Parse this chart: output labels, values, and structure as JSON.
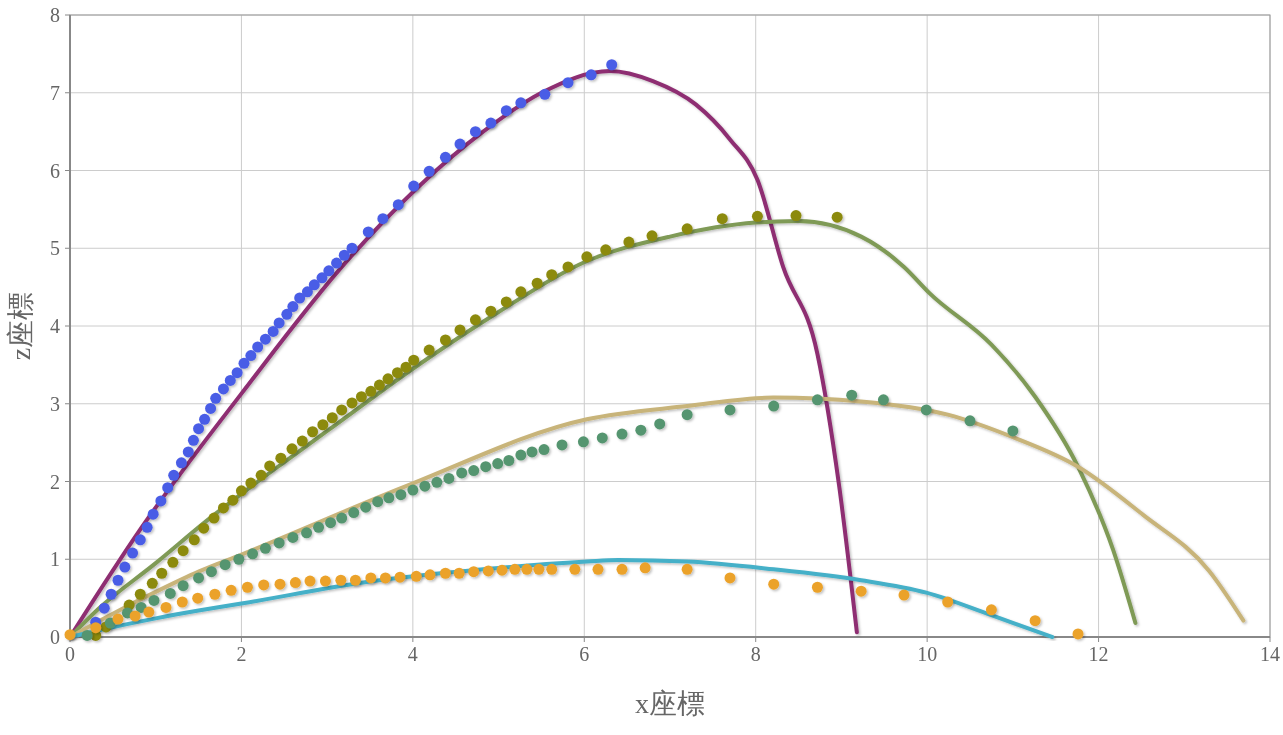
{
  "chart_data": {
    "type": "scatter",
    "xlabel": "x座標",
    "ylabel": "z座標",
    "xlim": [
      0,
      14
    ],
    "ylim": [
      0,
      8
    ],
    "xticks": [
      0,
      2,
      4,
      6,
      8,
      10,
      12,
      14
    ],
    "yticks": [
      0,
      1,
      2,
      3,
      4,
      5,
      6,
      7,
      8
    ],
    "grid": true,
    "marker": "circle",
    "series": [
      {
        "type": "line",
        "marker": "none",
        "color": "#8e2e72",
        "x": [
          0,
          0.83,
          2.0,
          3.25,
          4.82,
          5.5,
          6.3,
          6.8,
          7.3,
          7.7,
          8.02,
          8.32,
          8.72,
          8.97,
          9.18
        ],
        "values": [
          0,
          1.4,
          3.13,
          4.86,
          6.5,
          7.0,
          7.28,
          7.15,
          6.85,
          6.4,
          5.88,
          4.76,
          3.64,
          1.97,
          0.06
        ]
      },
      {
        "type": "line",
        "marker": "none",
        "color": "#7f9a57",
        "x": [
          0,
          0.33,
          1.0,
          1.6,
          2.5,
          3,
          4,
          5,
          6,
          7,
          8,
          8.5,
          9.23,
          9.73,
          10.03,
          10.75,
          11.26,
          11.76,
          12.17,
          12.43
        ],
        "values": [
          0,
          0.36,
          0.95,
          1.5,
          2.25,
          2.65,
          3.45,
          4.18,
          4.82,
          5.15,
          5.33,
          5.35,
          5.15,
          4.76,
          4.42,
          3.76,
          3.09,
          2.19,
          1.12,
          0.18
        ]
      },
      {
        "type": "line",
        "marker": "none",
        "color": "#c8b47a",
        "x": [
          0,
          0.5,
          1,
          1.5,
          2,
          3.92,
          6.03,
          7.2,
          8.21,
          9.23,
          10.24,
          11.0,
          11.76,
          12.52,
          13.29,
          13.69
        ],
        "values": [
          0,
          0.3,
          0.58,
          0.84,
          1.06,
          1.94,
          2.8,
          2.97,
          3.08,
          3.03,
          2.86,
          2.57,
          2.19,
          1.57,
          0.85,
          0.21
        ]
      },
      {
        "type": "line",
        "marker": "none",
        "color": "#45b0c8",
        "x": [
          0,
          0.35,
          1,
          1.5,
          2.0,
          3.48,
          4.82,
          6.03,
          6.4,
          7.2,
          8.21,
          9.23,
          9.99,
          10.75,
          11.46
        ],
        "values": [
          0,
          0.09,
          0.24,
          0.34,
          0.43,
          0.71,
          0.87,
          0.97,
          0.99,
          0.97,
          0.87,
          0.73,
          0.57,
          0.28,
          0
        ]
      },
      {
        "color": "#4a5de6",
        "x": [
          0.3,
          0.4,
          0.48,
          0.56,
          0.64,
          0.73,
          0.82,
          0.9,
          0.97,
          1.06,
          1.14,
          1.21,
          1.3,
          1.38,
          1.44,
          1.5,
          1.57,
          1.64,
          1.7,
          1.79,
          1.87,
          1.95,
          2.03,
          2.11,
          2.19,
          2.28,
          2.37,
          2.44,
          2.53,
          2.6,
          2.68,
          2.77,
          2.85,
          2.94,
          3.02,
          3.11,
          3.2,
          3.29,
          3.48,
          3.65,
          3.83,
          4.01,
          4.19,
          4.38,
          4.55,
          4.73,
          4.91,
          5.09,
          5.26,
          5.54,
          5.81,
          6.08,
          6.32
        ],
        "values": [
          0.19,
          0.37,
          0.55,
          0.73,
          0.9,
          1.08,
          1.25,
          1.41,
          1.58,
          1.75,
          1.92,
          2.08,
          2.24,
          2.38,
          2.53,
          2.68,
          2.8,
          2.94,
          3.07,
          3.19,
          3.3,
          3.4,
          3.52,
          3.62,
          3.73,
          3.83,
          3.93,
          4.04,
          4.15,
          4.25,
          4.36,
          4.44,
          4.53,
          4.62,
          4.71,
          4.81,
          4.91,
          5.0,
          5.21,
          5.38,
          5.56,
          5.8,
          5.99,
          6.17,
          6.34,
          6.5,
          6.61,
          6.77,
          6.87,
          6.98,
          7.13,
          7.23,
          7.36
        ]
      },
      {
        "color": "#8c8a0e",
        "x": [
          0.3,
          0.42,
          0.69,
          0.82,
          0.96,
          1.07,
          1.2,
          1.32,
          1.45,
          1.56,
          1.68,
          1.79,
          1.9,
          2.0,
          2.11,
          2.23,
          2.33,
          2.46,
          2.59,
          2.71,
          2.83,
          2.95,
          3.06,
          3.17,
          3.29,
          3.4,
          3.51,
          3.61,
          3.71,
          3.82,
          3.92,
          4.01,
          4.19,
          4.38,
          4.55,
          4.73,
          4.91,
          5.09,
          5.26,
          5.45,
          5.62,
          5.81,
          6.03,
          6.25,
          6.52,
          6.79,
          7.2,
          7.61,
          8.02,
          8.47,
          8.95
        ],
        "values": [
          0.02,
          0.13,
          0.41,
          0.55,
          0.69,
          0.82,
          0.96,
          1.11,
          1.25,
          1.4,
          1.53,
          1.66,
          1.76,
          1.88,
          1.98,
          2.08,
          2.2,
          2.3,
          2.42,
          2.52,
          2.64,
          2.73,
          2.82,
          2.92,
          3.01,
          3.09,
          3.16,
          3.24,
          3.32,
          3.4,
          3.47,
          3.56,
          3.69,
          3.82,
          3.95,
          4.08,
          4.19,
          4.31,
          4.44,
          4.55,
          4.66,
          4.76,
          4.89,
          4.98,
          5.08,
          5.16,
          5.25,
          5.38,
          5.41,
          5.42,
          5.4
        ]
      },
      {
        "color": "#55956f",
        "x": [
          0.2,
          0.47,
          0.67,
          0.83,
          0.98,
          1.17,
          1.32,
          1.5,
          1.65,
          1.81,
          1.97,
          2.13,
          2.28,
          2.44,
          2.6,
          2.76,
          2.9,
          3.04,
          3.17,
          3.31,
          3.45,
          3.59,
          3.72,
          3.86,
          4.0,
          4.14,
          4.28,
          4.42,
          4.57,
          4.71,
          4.85,
          4.99,
          5.12,
          5.26,
          5.39,
          5.53,
          5.74,
          5.99,
          6.21,
          6.44,
          6.66,
          6.88,
          7.2,
          7.7,
          8.21,
          8.72,
          9.12,
          9.49,
          9.99,
          10.5,
          11.0
        ],
        "values": [
          0.02,
          0.18,
          0.31,
          0.38,
          0.47,
          0.56,
          0.66,
          0.76,
          0.84,
          0.93,
          1.0,
          1.07,
          1.14,
          1.21,
          1.28,
          1.34,
          1.41,
          1.47,
          1.53,
          1.6,
          1.67,
          1.74,
          1.79,
          1.83,
          1.89,
          1.94,
          1.99,
          2.04,
          2.11,
          2.14,
          2.19,
          2.23,
          2.27,
          2.34,
          2.38,
          2.41,
          2.47,
          2.51,
          2.56,
          2.61,
          2.66,
          2.74,
          2.86,
          2.92,
          2.97,
          3.05,
          3.11,
          3.05,
          2.92,
          2.78,
          2.65
        ]
      },
      {
        "color": "#eba22a",
        "x": [
          0.0,
          0.3,
          0.56,
          0.76,
          0.92,
          1.12,
          1.31,
          1.49,
          1.69,
          1.88,
          2.07,
          2.26,
          2.45,
          2.63,
          2.8,
          2.98,
          3.16,
          3.33,
          3.51,
          3.68,
          3.85,
          4.04,
          4.2,
          4.38,
          4.54,
          4.71,
          4.88,
          5.04,
          5.19,
          5.33,
          5.47,
          5.62,
          5.89,
          6.16,
          6.44,
          6.71,
          7.2,
          7.7,
          8.21,
          8.72,
          9.23,
          9.73,
          10.24,
          10.75,
          11.26,
          11.76
        ],
        "values": [
          0.03,
          0.12,
          0.23,
          0.27,
          0.32,
          0.38,
          0.45,
          0.5,
          0.55,
          0.6,
          0.64,
          0.67,
          0.68,
          0.7,
          0.72,
          0.72,
          0.73,
          0.73,
          0.76,
          0.76,
          0.77,
          0.78,
          0.8,
          0.82,
          0.82,
          0.84,
          0.85,
          0.86,
          0.87,
          0.87,
          0.87,
          0.87,
          0.87,
          0.87,
          0.87,
          0.89,
          0.87,
          0.76,
          0.68,
          0.64,
          0.59,
          0.54,
          0.45,
          0.35,
          0.21,
          0.04
        ]
      }
    ]
  }
}
